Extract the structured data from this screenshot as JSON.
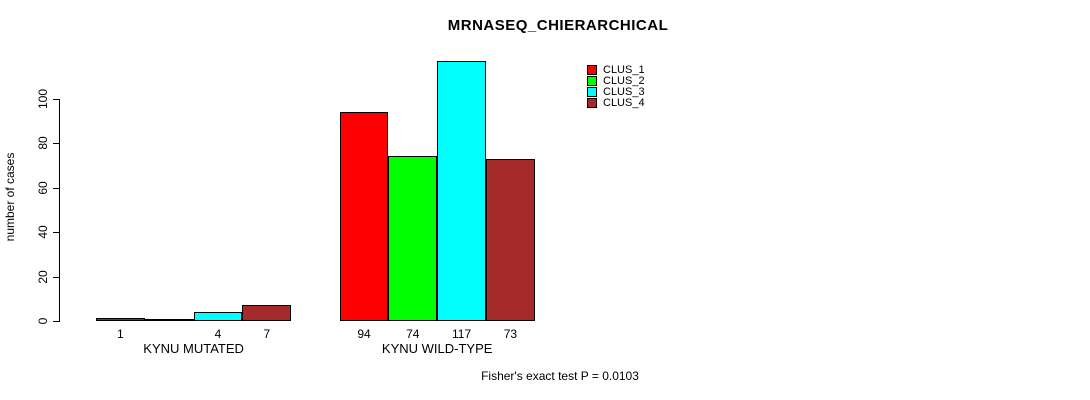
{
  "chart_data": {
    "type": "bar",
    "title": "MRNASEQ_CHIERARCHICAL",
    "ylabel": "number of cases",
    "xlabel": "",
    "ylim": [
      0,
      117
    ],
    "yticks": [
      0,
      20,
      40,
      60,
      80,
      100
    ],
    "grid": false,
    "legend_position": "top-right",
    "categories": [
      "KYNU MUTATED",
      "KYNU WILD-TYPE"
    ],
    "series": [
      {
        "name": "CLUS_1",
        "color": "#FF0000",
        "values": [
          1,
          94
        ],
        "labels": [
          "1",
          "94"
        ]
      },
      {
        "name": "CLUS_2",
        "color": "#00FF00",
        "values": [
          0,
          74
        ],
        "labels": [
          "",
          "74"
        ]
      },
      {
        "name": "CLUS_3",
        "color": "#00FFFF",
        "values": [
          4,
          117
        ],
        "labels": [
          "4",
          "117"
        ]
      },
      {
        "name": "CLUS_4",
        "color": "#A52A2A",
        "values": [
          7,
          73
        ],
        "labels": [
          "7",
          "73"
        ]
      }
    ],
    "footnote": "Fisher's exact test P = 0.0103",
    "axis_color": "#000000",
    "bar_border_color": "#000000"
  }
}
